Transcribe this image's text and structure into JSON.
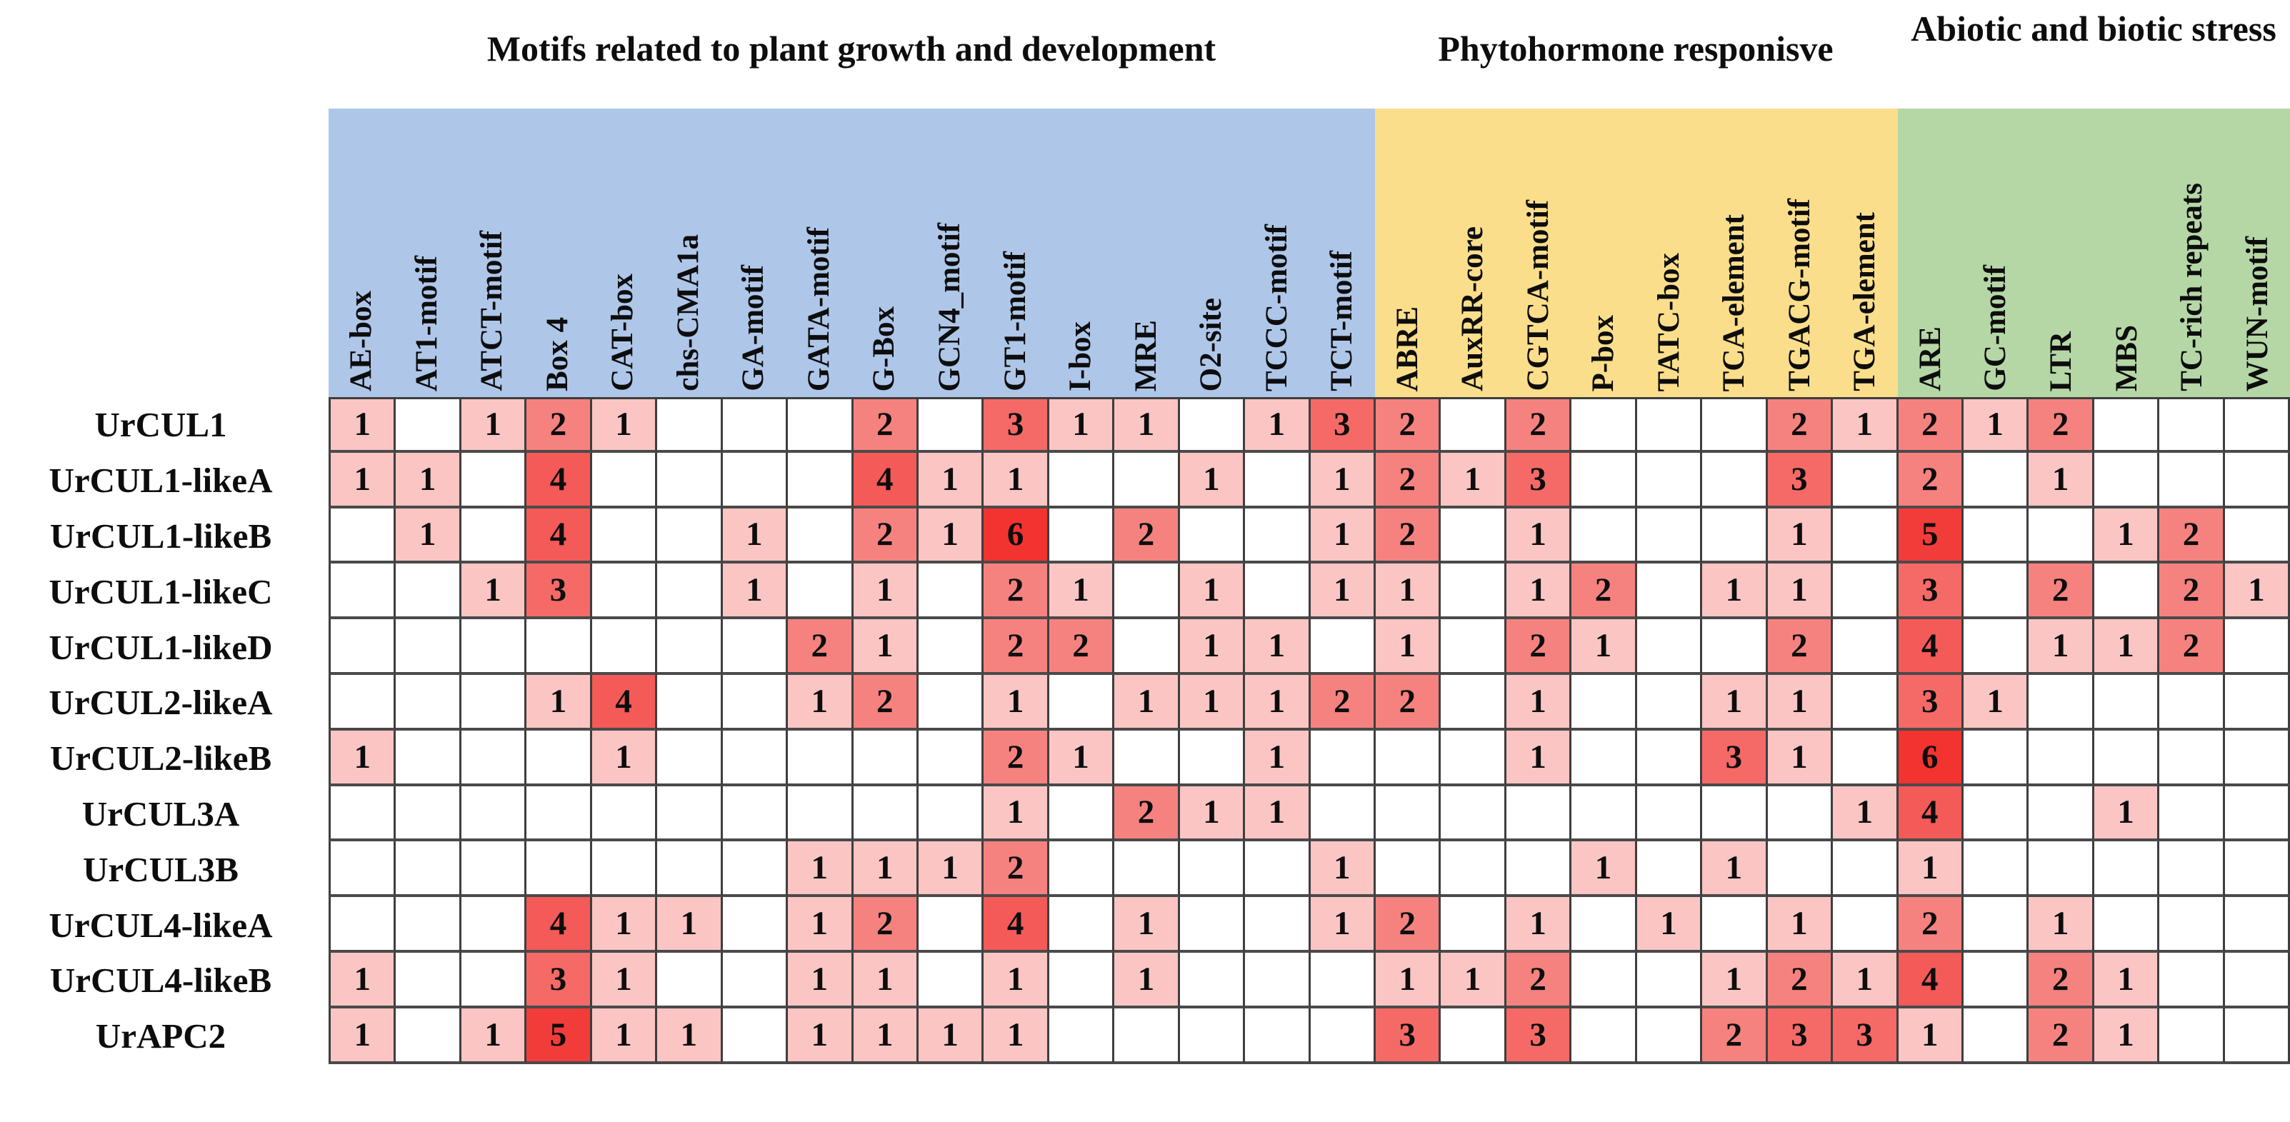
{
  "chart_data": {
    "type": "heatmap",
    "description": "Counts of cis-acting regulatory elements in promoters of UrCUL genes",
    "groups": [
      {
        "label": "Motifs related to plant growth and development",
        "color": "#AEC6E8",
        "columns": [
          "AE-box",
          "AT1-motif",
          "ATCT-motif",
          "Box 4",
          "CAT-box",
          "chs-CMA1a",
          "GA-motif",
          "GATA-motif",
          "G-Box",
          "GCN4_motif",
          "GT1-motif",
          "I-box",
          "MRE",
          "O2-site",
          "TCCC-motif",
          "TCT-motif"
        ]
      },
      {
        "label": "Phytohormone responisve",
        "color": "#FBDE8B",
        "columns": [
          "ABRE",
          "AuxRR-core",
          "CGTCA-motif",
          "P-box",
          "TATC-box",
          "TCA-element",
          "TGACG-motif",
          "TGA-element"
        ]
      },
      {
        "label": "Abiotic and biotic stress",
        "color": "#B5D7A6",
        "columns": [
          "ARE",
          "GC-motif",
          "LTR",
          "MBS",
          "TC-rich repeats",
          "WUN-motif"
        ]
      }
    ],
    "rows": [
      "UrCUL1",
      "UrCUL1-likeA",
      "UrCUL1-likeB",
      "UrCUL1-likeC",
      "UrCUL1-likeD",
      "UrCUL2-likeA",
      "UrCUL2-likeB",
      "UrCUL3A",
      "UrCUL3B",
      "UrCUL4-likeA",
      "UrCUL4-likeB",
      "UrAPC2"
    ],
    "values": [
      [
        1,
        0,
        1,
        2,
        1,
        0,
        0,
        0,
        2,
        0,
        3,
        1,
        1,
        0,
        1,
        3,
        2,
        0,
        2,
        0,
        0,
        0,
        2,
        1,
        2,
        1,
        2,
        0,
        0,
        0
      ],
      [
        1,
        1,
        0,
        4,
        0,
        0,
        0,
        0,
        4,
        1,
        1,
        0,
        0,
        1,
        0,
        1,
        2,
        1,
        3,
        0,
        0,
        0,
        3,
        0,
        2,
        0,
        1,
        0,
        0,
        0
      ],
      [
        0,
        1,
        0,
        4,
        0,
        0,
        1,
        0,
        2,
        1,
        6,
        0,
        2,
        0,
        0,
        1,
        2,
        0,
        1,
        0,
        0,
        0,
        1,
        0,
        5,
        0,
        0,
        1,
        2,
        0
      ],
      [
        0,
        0,
        1,
        3,
        0,
        0,
        1,
        0,
        1,
        0,
        2,
        1,
        0,
        1,
        0,
        1,
        1,
        0,
        1,
        2,
        0,
        1,
        1,
        0,
        3,
        0,
        2,
        0,
        2,
        1
      ],
      [
        0,
        0,
        0,
        0,
        0,
        0,
        0,
        2,
        1,
        0,
        2,
        2,
        0,
        1,
        1,
        0,
        1,
        0,
        2,
        1,
        0,
        0,
        2,
        0,
        4,
        0,
        1,
        1,
        2,
        0
      ],
      [
        0,
        0,
        0,
        1,
        4,
        0,
        0,
        1,
        2,
        0,
        1,
        0,
        1,
        1,
        1,
        2,
        2,
        0,
        1,
        0,
        0,
        1,
        1,
        0,
        3,
        1,
        0,
        0,
        0,
        0
      ],
      [
        1,
        0,
        0,
        0,
        1,
        0,
        0,
        0,
        0,
        0,
        2,
        1,
        0,
        0,
        1,
        0,
        0,
        0,
        1,
        0,
        0,
        3,
        1,
        0,
        6,
        0,
        0,
        0,
        0,
        0
      ],
      [
        0,
        0,
        0,
        0,
        0,
        0,
        0,
        0,
        0,
        0,
        1,
        0,
        2,
        1,
        1,
        0,
        0,
        0,
        0,
        0,
        0,
        0,
        0,
        1,
        4,
        0,
        0,
        1,
        0,
        0
      ],
      [
        0,
        0,
        0,
        0,
        0,
        0,
        0,
        1,
        1,
        1,
        2,
        0,
        0,
        0,
        0,
        1,
        0,
        0,
        0,
        1,
        0,
        1,
        0,
        0,
        1,
        0,
        0,
        0,
        0,
        0
      ],
      [
        0,
        0,
        0,
        4,
        1,
        1,
        0,
        1,
        2,
        0,
        4,
        0,
        1,
        0,
        0,
        1,
        2,
        0,
        1,
        0,
        1,
        0,
        1,
        0,
        2,
        0,
        1,
        0,
        0,
        0
      ],
      [
        1,
        0,
        0,
        3,
        1,
        0,
        0,
        1,
        1,
        0,
        1,
        0,
        1,
        0,
        0,
        0,
        1,
        1,
        2,
        0,
        0,
        1,
        2,
        1,
        4,
        0,
        2,
        1,
        0,
        0
      ],
      [
        1,
        0,
        1,
        5,
        1,
        1,
        0,
        1,
        1,
        1,
        1,
        0,
        0,
        0,
        0,
        0,
        3,
        0,
        3,
        0,
        0,
        2,
        3,
        3,
        1,
        0,
        2,
        1,
        0,
        0
      ]
    ],
    "value_colors": {
      "0": "#FFFFFF",
      "1": "#FAC5C3",
      "2": "#F5827F",
      "3": "#F56A67",
      "4": "#F45A57",
      "5": "#F23C3A",
      "6": "#F23330"
    },
    "grid_line_color": "#3e3e3e"
  }
}
